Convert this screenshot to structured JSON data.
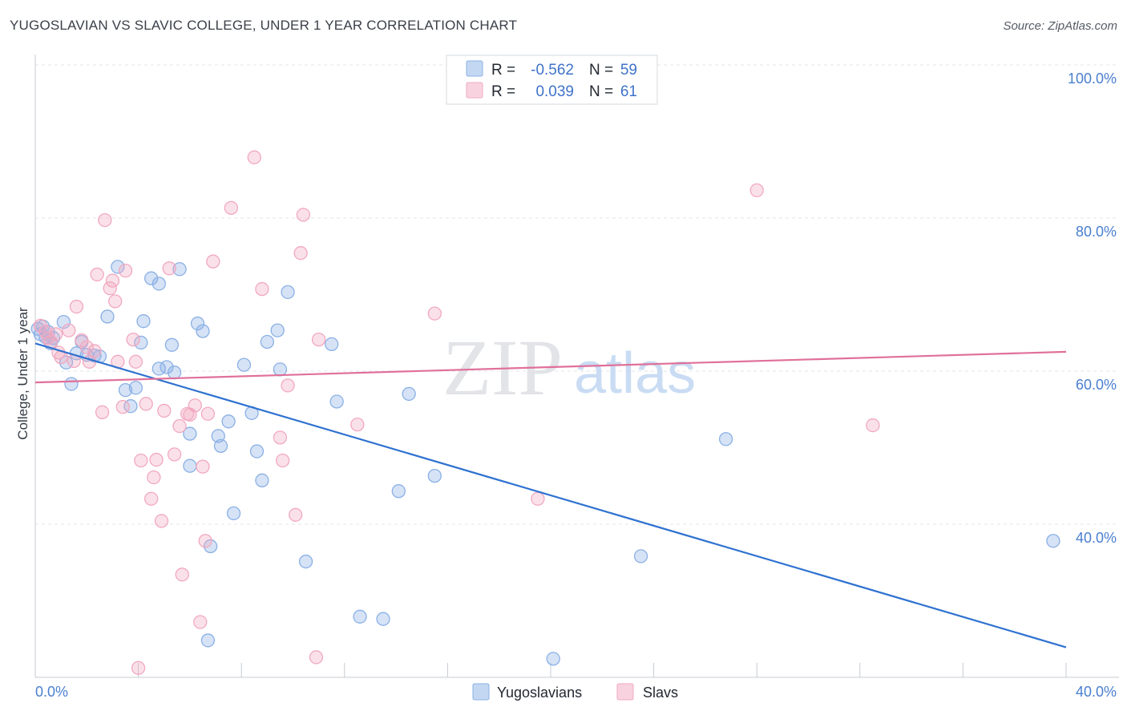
{
  "title": "YUGOSLAVIAN VS SLAVIC COLLEGE, UNDER 1 YEAR CORRELATION CHART",
  "source": "Source: ZipAtlas.com",
  "watermark": {
    "zip": "ZIP",
    "atlas": "atlas"
  },
  "legend": {
    "rows": [
      {
        "r_label": "R =",
        "r_value": "-0.562",
        "n_label": "N =",
        "n_value": "59",
        "color": "#8ab0e6"
      },
      {
        "r_label": "R =",
        "r_value": "0.039",
        "n_label": "N =",
        "n_value": "61",
        "color": "#f2a8c0"
      }
    ]
  },
  "chart_data": {
    "type": "scatter",
    "title": "YUGOSLAVIAN VS SLAVIC COLLEGE, UNDER 1 YEAR CORRELATION CHART",
    "xlabel": "",
    "ylabel": "College, Under 1 year",
    "xlim": [
      0,
      40
    ],
    "ylim": [
      20,
      102
    ],
    "x_tick_labels": [
      "0.0%",
      "40.0%"
    ],
    "y_ticks": [
      {
        "value": 40,
        "label": "40.0%"
      },
      {
        "value": 60,
        "label": "60.0%"
      },
      {
        "value": 80,
        "label": "80.0%"
      },
      {
        "value": 100,
        "label": "100.0%"
      }
    ],
    "grid": true,
    "legend_position": "top-center",
    "series": [
      {
        "name": "Yugoslavians",
        "color": "#8ab0e6",
        "line_color": "#2f72d0",
        "trend": {
          "x": [
            0,
            40
          ],
          "y": [
            65.3,
            25.6
          ]
        },
        "points": [
          [
            0.1,
            67.2
          ],
          [
            0.2,
            66.5
          ],
          [
            0.3,
            67.5
          ],
          [
            0.4,
            66.1
          ],
          [
            0.5,
            66.8
          ],
          [
            0.6,
            65.3
          ],
          [
            0.7,
            66.0
          ],
          [
            1.1,
            68.1
          ],
          [
            1.2,
            62.8
          ],
          [
            1.4,
            60.0
          ],
          [
            1.6,
            64.0
          ],
          [
            1.8,
            65.5
          ],
          [
            2.0,
            63.8
          ],
          [
            2.3,
            63.7
          ],
          [
            2.5,
            63.6
          ],
          [
            2.8,
            68.8
          ],
          [
            3.2,
            75.3
          ],
          [
            3.5,
            59.2
          ],
          [
            3.7,
            57.1
          ],
          [
            3.9,
            59.5
          ],
          [
            4.1,
            65.4
          ],
          [
            4.2,
            68.2
          ],
          [
            4.5,
            73.8
          ],
          [
            4.8,
            73.1
          ],
          [
            4.8,
            62.0
          ],
          [
            5.1,
            62.2
          ],
          [
            5.3,
            65.1
          ],
          [
            5.4,
            61.5
          ],
          [
            5.6,
            75.0
          ],
          [
            6.0,
            53.5
          ],
          [
            6.0,
            49.3
          ],
          [
            6.3,
            67.9
          ],
          [
            6.5,
            66.9
          ],
          [
            6.7,
            26.5
          ],
          [
            6.8,
            38.8
          ],
          [
            7.1,
            53.2
          ],
          [
            7.2,
            51.9
          ],
          [
            7.5,
            55.1
          ],
          [
            7.7,
            43.1
          ],
          [
            8.1,
            62.5
          ],
          [
            8.4,
            56.2
          ],
          [
            8.6,
            51.2
          ],
          [
            8.8,
            47.4
          ],
          [
            9.0,
            65.5
          ],
          [
            9.4,
            67.0
          ],
          [
            9.5,
            61.9
          ],
          [
            9.8,
            72.0
          ],
          [
            10.5,
            36.8
          ],
          [
            11.5,
            65.2
          ],
          [
            11.7,
            57.7
          ],
          [
            12.6,
            29.6
          ],
          [
            13.5,
            29.3
          ],
          [
            14.1,
            46.0
          ],
          [
            14.5,
            58.7
          ],
          [
            15.5,
            48.0
          ],
          [
            20.1,
            24.1
          ],
          [
            23.5,
            37.5
          ],
          [
            26.8,
            52.8
          ],
          [
            39.5,
            39.5
          ]
        ]
      },
      {
        "name": "Slavs",
        "color": "#f2a8c0",
        "line_color": "#e0709a",
        "trend": {
          "x": [
            0,
            40
          ],
          "y": [
            60.2,
            64.2
          ]
        },
        "points": [
          [
            0.2,
            67.6
          ],
          [
            0.4,
            66.8
          ],
          [
            0.6,
            65.5
          ],
          [
            0.8,
            66.5
          ],
          [
            0.9,
            64.1
          ],
          [
            1.0,
            63.5
          ],
          [
            1.3,
            67.0
          ],
          [
            1.6,
            70.1
          ],
          [
            1.8,
            65.7
          ],
          [
            2.0,
            64.8
          ],
          [
            2.1,
            62.9
          ],
          [
            2.3,
            64.3
          ],
          [
            2.4,
            74.3
          ],
          [
            2.6,
            56.3
          ],
          [
            2.7,
            81.4
          ],
          [
            2.9,
            72.5
          ],
          [
            3.1,
            70.8
          ],
          [
            3.2,
            62.9
          ],
          [
            3.4,
            57.0
          ],
          [
            3.5,
            74.8
          ],
          [
            3.8,
            65.8
          ],
          [
            3.9,
            62.9
          ],
          [
            4.0,
            22.9
          ],
          [
            4.1,
            50.0
          ],
          [
            4.3,
            57.4
          ],
          [
            4.5,
            45.0
          ],
          [
            4.6,
            47.8
          ],
          [
            4.7,
            50.1
          ],
          [
            4.9,
            42.1
          ],
          [
            5.0,
            56.5
          ],
          [
            5.2,
            75.1
          ],
          [
            5.4,
            50.8
          ],
          [
            5.6,
            54.5
          ],
          [
            5.7,
            35.1
          ],
          [
            5.9,
            56.1
          ],
          [
            6.0,
            56.0
          ],
          [
            6.2,
            57.2
          ],
          [
            6.4,
            28.9
          ],
          [
            6.5,
            49.2
          ],
          [
            6.6,
            39.5
          ],
          [
            6.7,
            56.1
          ],
          [
            6.9,
            76.0
          ],
          [
            7.6,
            83.0
          ],
          [
            8.5,
            89.6
          ],
          [
            8.8,
            72.4
          ],
          [
            9.5,
            53.0
          ],
          [
            9.6,
            50.0
          ],
          [
            9.8,
            59.8
          ],
          [
            10.1,
            42.9
          ],
          [
            10.3,
            77.1
          ],
          [
            10.4,
            82.1
          ],
          [
            10.9,
            24.3
          ],
          [
            11.0,
            65.8
          ],
          [
            12.5,
            54.7
          ],
          [
            15.5,
            69.2
          ],
          [
            19.5,
            45.0
          ],
          [
            28.0,
            85.3
          ],
          [
            32.5,
            54.6
          ],
          [
            0.5,
            66.0
          ],
          [
            1.5,
            63.0
          ],
          [
            3.0,
            73.5
          ]
        ]
      }
    ]
  },
  "bottom_legend": [
    {
      "label": "Yugoslavians",
      "color": "#8ab0e6"
    },
    {
      "label": "Slavs",
      "color": "#f2a8c0"
    }
  ]
}
